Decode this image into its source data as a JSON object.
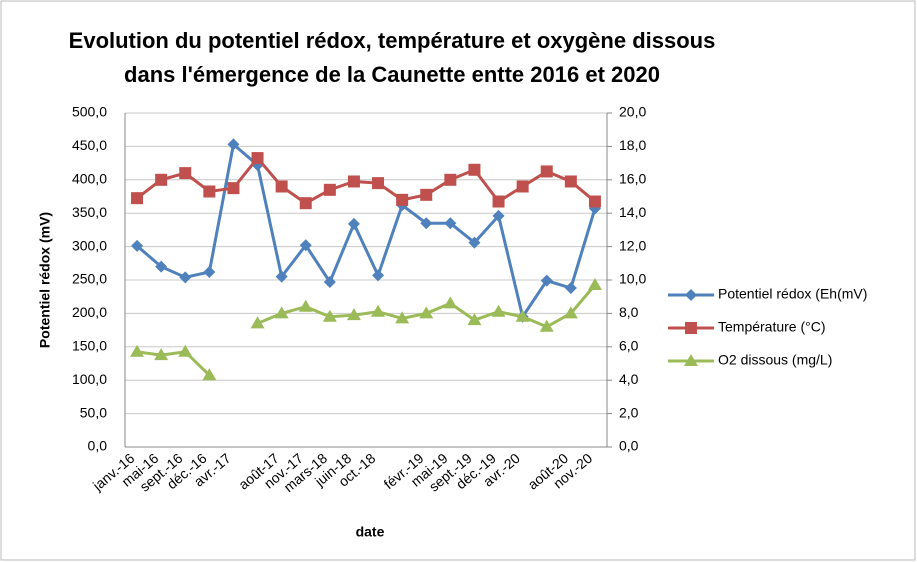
{
  "chart_data": {
    "type": "line",
    "title": [
      "Evolution du potentiel rédox, température et oxygène dissous",
      "dans l'émergence de la Caunette entte 2016 et 2020"
    ],
    "x_label": "date",
    "y_label": "Potentiel rédox (mV)",
    "categories": [
      "janv.-16",
      "mai-16",
      "sept.-16",
      "déc.-16",
      "avr.-17",
      null,
      "août-17",
      "nov.-17",
      "mars-18",
      "juin-18",
      "oct.-18",
      null,
      "févr.-19",
      "mai-19",
      "sept.-19",
      "déc.-19",
      "avr.-20",
      null,
      "août-20",
      "nov.-20"
    ],
    "series": [
      {
        "name": "Potentiel rédox (Eh(mV)",
        "color": "#4f81bd",
        "marker": "diamond",
        "values": [
          301,
          270,
          254,
          262,
          453,
          422,
          255,
          302,
          247,
          334,
          257,
          362,
          335,
          335,
          306,
          346,
          195,
          249,
          238,
          357
        ]
      },
      {
        "name": "Température (°C)",
        "color": "#c0504d",
        "marker": "square",
        "axis": "y2",
        "values": [
          14.9,
          16.0,
          16.4,
          15.3,
          15.5,
          17.3,
          15.6,
          14.6,
          15.4,
          15.9,
          15.8,
          14.8,
          15.1,
          16.0,
          16.6,
          14.7,
          15.6,
          16.5,
          15.9,
          14.7
        ]
      },
      {
        "name": "O2 dissous (mg/L)",
        "color": "#9bbb59",
        "marker": "triangle",
        "axis": "y2",
        "values": [
          5.7,
          5.5,
          5.7,
          4.3,
          null,
          7.4,
          8.0,
          8.4,
          7.8,
          7.9,
          8.1,
          7.7,
          8.0,
          8.6,
          7.6,
          8.1,
          7.8,
          7.2,
          8.0,
          9.7
        ]
      }
    ],
    "ylim": [
      0,
      500
    ],
    "yticks": [
      {
        "value": 0,
        "label": "0,0"
      },
      {
        "value": 50,
        "label": "50,0"
      },
      {
        "value": 100,
        "label": "100,0"
      },
      {
        "value": 150,
        "label": "150,0"
      },
      {
        "value": 200,
        "label": "200,0"
      },
      {
        "value": 250,
        "label": "250,0"
      },
      {
        "value": 300,
        "label": "300,0"
      },
      {
        "value": 350,
        "label": "350,0"
      },
      {
        "value": 400,
        "label": "400,0"
      },
      {
        "value": 450,
        "label": "450,0"
      },
      {
        "value": 500,
        "label": "500,0"
      }
    ],
    "y2lim": [
      0,
      20
    ],
    "y2ticks": [
      {
        "value": 0,
        "label": "0,0"
      },
      {
        "value": 2,
        "label": "2,0"
      },
      {
        "value": 4,
        "label": "4,0"
      },
      {
        "value": 6,
        "label": "6,0"
      },
      {
        "value": 8,
        "label": "8,0"
      },
      {
        "value": 10,
        "label": "10,0"
      },
      {
        "value": 12,
        "label": "12,0"
      },
      {
        "value": 14,
        "label": "14,0"
      },
      {
        "value": 16,
        "label": "16,0"
      },
      {
        "value": 18,
        "label": "18,0"
      },
      {
        "value": 20,
        "label": "20,0"
      }
    ],
    "grid": true,
    "legend": "right"
  }
}
